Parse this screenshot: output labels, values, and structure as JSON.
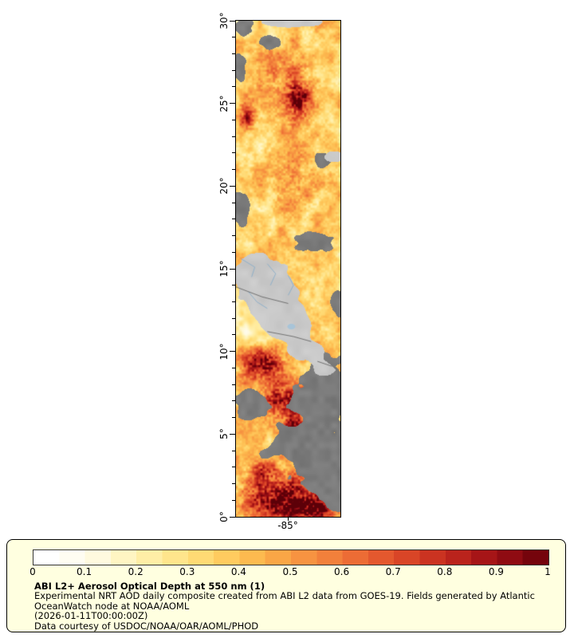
{
  "map": {
    "x_tick": {
      "label": "-85°",
      "x": 0.5
    },
    "lat_ticks": [
      {
        "label": "30°",
        "lat": 30
      },
      {
        "label": "25°",
        "lat": 25
      },
      {
        "label": "20°",
        "lat": 20
      },
      {
        "label": "15°",
        "lat": 15
      },
      {
        "label": "10°",
        "lat": 10
      },
      {
        "label": "5°",
        "lat": 5
      },
      {
        "label": "0°",
        "lat": 0
      }
    ],
    "lat_range": [
      0,
      30
    ],
    "colors": {
      "land": "#C9C9C9",
      "cloud": "#7B7B7B",
      "river": "#8FB0C9",
      "border": "#5A5A5A",
      "lake": "#A8C4D8",
      "frame": "#000000"
    },
    "features": {
      "hotspots": [
        {
          "lat": 26.5,
          "x": 0.45,
          "rx": 34,
          "ry": 44,
          "amp": 0.17
        },
        {
          "lat": 25.3,
          "x": 0.6,
          "rx": 14,
          "ry": 26,
          "amp": 0.55
        },
        {
          "lat": 24.2,
          "x": 0.1,
          "rx": 10,
          "ry": 14,
          "amp": 0.45
        },
        {
          "lat": 20.5,
          "x": 0.55,
          "rx": 36,
          "ry": 48,
          "amp": 0.14
        },
        {
          "lat": 9.3,
          "x": 0.25,
          "rx": 28,
          "ry": 20,
          "amp": 0.5
        },
        {
          "lat": 7.0,
          "x": 0.45,
          "rx": 32,
          "ry": 22,
          "amp": 0.5
        },
        {
          "lat": 5.6,
          "x": 0.55,
          "rx": 16,
          "ry": 12,
          "amp": 0.45
        },
        {
          "lat": 2.8,
          "x": 0.25,
          "rx": 18,
          "ry": 13,
          "amp": 0.35
        },
        {
          "lat": 1.2,
          "x": 0.45,
          "rx": 48,
          "ry": 26,
          "amp": 0.65
        },
        {
          "lat": 0.4,
          "x": 0.72,
          "rx": 24,
          "ry": 14,
          "amp": 0.55
        },
        {
          "lat": 11.5,
          "x": 0.2,
          "rx": 28,
          "ry": 24,
          "amp": -0.16
        },
        {
          "lat": 13.5,
          "x": 0.12,
          "rx": 20,
          "ry": 18,
          "amp": -0.1
        },
        {
          "lat": 29.2,
          "x": 0.3,
          "rx": 22,
          "ry": 14,
          "amp": -0.08
        }
      ],
      "clouds": [
        {
          "lat": 29.6,
          "x": 0.08,
          "rx": 13,
          "ry": 11
        },
        {
          "lat": 28.7,
          "x": 0.32,
          "rx": 15,
          "ry": 9
        },
        {
          "lat": 27.2,
          "x": 0.03,
          "rx": 10,
          "ry": 20
        },
        {
          "lat": 21.6,
          "x": 0.82,
          "rx": 13,
          "ry": 11
        },
        {
          "lat": 18.7,
          "x": 0.05,
          "rx": 12,
          "ry": 26
        },
        {
          "lat": 16.6,
          "x": 0.75,
          "rx": 28,
          "ry": 14
        },
        {
          "lat": 13.0,
          "x": 0.98,
          "rx": 11,
          "ry": 20
        },
        {
          "lat": 7.5,
          "x": 0.85,
          "rx": 34,
          "ry": 52
        },
        {
          "lat": 4.5,
          "x": 0.55,
          "rx": 52,
          "ry": 48
        },
        {
          "lat": 2.0,
          "x": 0.92,
          "rx": 32,
          "ry": 38
        },
        {
          "lat": 6.9,
          "x": 0.12,
          "rx": 18,
          "ry": 22
        }
      ],
      "clearings": [
        {
          "lat": 5.0,
          "x": 0.22,
          "rx": 20,
          "ry": 15
        },
        {
          "lat": 3.1,
          "x": 0.42,
          "rx": 15,
          "ry": 11
        },
        {
          "lat": 5.9,
          "x": 0.55,
          "rx": 13,
          "ry": 9
        },
        {
          "lat": 0.9,
          "x": 0.45,
          "rx": 38,
          "ry": 16
        }
      ],
      "land": [
        {
          "lat": 29.95,
          "x": 0.55,
          "rx": 48,
          "ry": 8
        },
        {
          "lat": 21.8,
          "x": 0.93,
          "rx": 14,
          "ry": 8
        },
        {
          "lat": 14.8,
          "x": 0.22,
          "rx": 38,
          "ry": 28
        },
        {
          "lat": 13.2,
          "x": 0.35,
          "rx": 40,
          "ry": 24
        },
        {
          "lat": 11.5,
          "x": 0.5,
          "rx": 32,
          "ry": 20
        },
        {
          "lat": 10.0,
          "x": 0.68,
          "rx": 24,
          "ry": 14
        },
        {
          "lat": 8.9,
          "x": 0.85,
          "rx": 16,
          "ry": 10
        }
      ]
    },
    "rivers": [
      [
        [
          0.05,
          15.6
        ],
        [
          0.18,
          15.1
        ],
        [
          0.15,
          14.5
        ]
      ],
      [
        [
          0.3,
          15.3
        ],
        [
          0.38,
          14.7
        ],
        [
          0.33,
          14.0
        ]
      ],
      [
        [
          0.5,
          14.6
        ],
        [
          0.55,
          14.0
        ],
        [
          0.5,
          13.4
        ]
      ],
      [
        [
          0.12,
          13.6
        ],
        [
          0.2,
          13.0
        ],
        [
          0.3,
          12.6
        ]
      ]
    ],
    "borders": [
      [
        [
          0.0,
          13.9
        ],
        [
          0.25,
          13.3
        ],
        [
          0.5,
          12.9
        ]
      ],
      [
        [
          0.3,
          11.2
        ],
        [
          0.55,
          10.9
        ],
        [
          0.72,
          10.6
        ]
      ],
      [
        [
          0.78,
          9.4
        ],
        [
          0.92,
          9.1
        ]
      ]
    ],
    "lake": {
      "x": 0.53,
      "lat": 11.5,
      "rx": 5,
      "ry": 3.5
    }
  },
  "legend": {
    "title": "ABI L2+ Aerosol Optical Depth at 550 nm (1)",
    "description_line1": "Experimental NRT AOD daily composite created from ABI L2 data from GOES-19. Fields generated by Atlantic",
    "description_line2": "OceanWatch node at NOAA/AOML",
    "timestamp": "(2026-01-11T00:00:00Z)",
    "credit": "Data courtesy of USDOC/NOAA/OAR/AOML/PHOD",
    "tick_labels": [
      "0",
      "0.1",
      "0.2",
      "0.3",
      "0.4",
      "0.5",
      "0.6",
      "0.7",
      "0.8",
      "0.9",
      "1"
    ],
    "stops": [
      "#FFFFFF",
      "#FFFDF2",
      "#FFFADF",
      "#FFF5C3",
      "#FFEEA6",
      "#FFE58C",
      "#FFDA74",
      "#FFCB5F",
      "#FDBA4F",
      "#FAA646",
      "#F79341",
      "#F2803B",
      "#EC6C35",
      "#E4582E",
      "#D94527",
      "#CB3321",
      "#BA231C",
      "#A61517",
      "#8F0B12",
      "#75040C",
      "#5C0008"
    ],
    "background": "#FFFFE0",
    "border_color": "#000000"
  }
}
